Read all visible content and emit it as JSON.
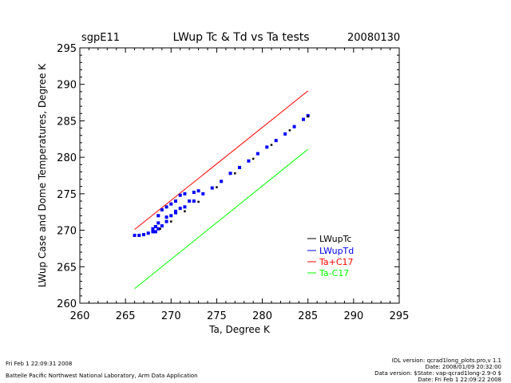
{
  "header": {
    "site": "sgpE11",
    "title": "LWup Tc & Td vs Ta tests",
    "date": "20080130"
  },
  "footer": {
    "left_line1": "Fri Feb  1 22:09:31 2008",
    "left_line2": "Battelle Pacific Northwest National Laboratory, Arm Data Application",
    "right_line1": "IDL version: qcrad1long_plots.pro,v 1.1",
    "right_line2": "Date: 2008/01/09 20:32:00",
    "right_line3": "Data version: $State: vap-qcrad1long-2.9-0 $",
    "right_line4": "Date: Fri Feb  1 22:09:22 2008"
  },
  "colors": {
    "tc": "#000000",
    "td": "#0000ff",
    "upper": "#ff0000",
    "lower": "#00ff00"
  },
  "chart_data": {
    "type": "scatter",
    "title": "LWup Tc & Td vs Ta tests",
    "xlabel": "Ta, Degree K",
    "ylabel": "LWup Case and Dome Temperatures, Degree K",
    "xlim": [
      260,
      295
    ],
    "ylim": [
      260,
      295
    ],
    "xticks": [
      "260",
      "265",
      "270",
      "275",
      "280",
      "285",
      "290",
      "295"
    ],
    "yticks": [
      "260",
      "265",
      "270",
      "275",
      "280",
      "285",
      "290",
      "295"
    ],
    "legend_position": "lower-right",
    "series": [
      {
        "name": "LWupTc",
        "style": "points",
        "x": [
          268.8,
          270.0,
          271.5,
          273.0,
          275.0,
          277.0,
          279.0,
          281.0,
          283.0,
          285.0
        ],
        "y": [
          270.2,
          271.2,
          272.6,
          273.9,
          275.9,
          277.8,
          279.8,
          281.7,
          283.7,
          285.6
        ]
      },
      {
        "name": "LWupTd",
        "style": "points",
        "x": [
          266.0,
          266.5,
          267.0,
          267.5,
          268.0,
          268.3,
          268.6,
          269.0,
          269.5,
          270.0,
          270.5,
          271.0,
          271.5,
          272.5,
          273.0,
          272.0,
          271.0,
          270.5,
          270.0,
          269.5,
          269.0,
          268.6,
          268.3,
          268.0,
          268.6,
          269.5,
          270.5,
          271.5,
          272.5,
          273.5,
          274.5,
          275.5,
          276.5,
          277.5,
          278.5,
          279.5,
          280.5,
          281.5,
          282.5,
          283.5,
          284.5,
          285.0
        ],
        "y": [
          269.3,
          269.3,
          269.4,
          269.6,
          269.8,
          270.5,
          272.0,
          272.8,
          273.2,
          273.6,
          274.0,
          274.8,
          275.0,
          275.2,
          275.4,
          274.0,
          273.0,
          272.6,
          272.0,
          271.2,
          270.6,
          270.2,
          269.8,
          270.2,
          271.0,
          271.8,
          272.4,
          273.2,
          274.0,
          275.0,
          275.8,
          276.7,
          277.8,
          278.6,
          279.5,
          280.5,
          281.4,
          282.3,
          283.2,
          284.2,
          285.2,
          285.7
        ]
      },
      {
        "name": "Ta+C17",
        "style": "line",
        "x": [
          266,
          285
        ],
        "y": [
          270.1,
          289.1
        ]
      },
      {
        "name": "Ta-C17",
        "style": "line",
        "x": [
          266,
          285
        ],
        "y": [
          262.0,
          281.1
        ]
      }
    ]
  }
}
